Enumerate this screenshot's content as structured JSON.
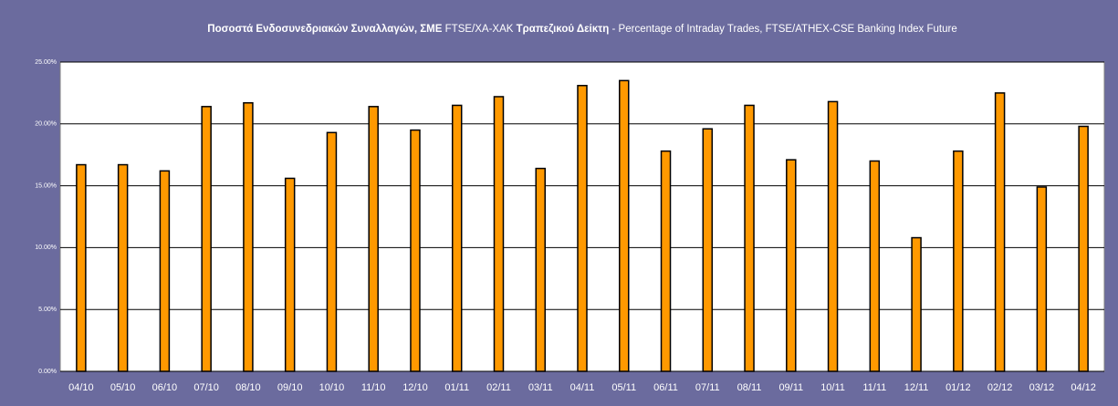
{
  "chart_data": {
    "type": "bar",
    "title": [
      {
        "text": "Ποσοστά Ενδοσυνεδριακών Συναλλαγών, ΣΜΕ",
        "bold": true
      },
      {
        "text": "FTSE/ΧΑ-ΧΑΚ",
        "bold": false
      },
      {
        "text": "Τραπεζικού Δείκτη",
        "bold": true
      },
      {
        "text": "- Percentage of Intraday Trades, FTSE/ATHEX-CSE Banking Index Future",
        "bold": false
      }
    ],
    "categories": [
      "04/10",
      "05/10",
      "06/10",
      "07/10",
      "08/10",
      "09/10",
      "10/10",
      "11/10",
      "12/10",
      "01/11",
      "02/11",
      "03/11",
      "04/11",
      "05/11",
      "06/11",
      "07/11",
      "08/11",
      "09/11",
      "10/11",
      "11/11",
      "12/11",
      "01/12",
      "02/12",
      "03/12",
      "04/12"
    ],
    "values": [
      16.7,
      16.7,
      16.2,
      21.4,
      21.7,
      15.6,
      19.3,
      21.4,
      19.5,
      21.5,
      22.2,
      16.4,
      23.1,
      23.5,
      17.8,
      19.6,
      21.5,
      17.1,
      21.8,
      17.0,
      10.8,
      17.8,
      22.5,
      14.9,
      19.8
    ],
    "color": "#ff9900",
    "ylim": [
      0,
      25
    ],
    "yticks": [
      {
        "value": 0,
        "label": "0.00%"
      },
      {
        "value": 5,
        "label": "5.00%"
      },
      {
        "value": 10,
        "label": "10.00%"
      },
      {
        "value": 15,
        "label": "15.00%"
      },
      {
        "value": 20,
        "label": "20.00%"
      },
      {
        "value": 25,
        "label": "25.00%"
      }
    ],
    "grid": true
  }
}
